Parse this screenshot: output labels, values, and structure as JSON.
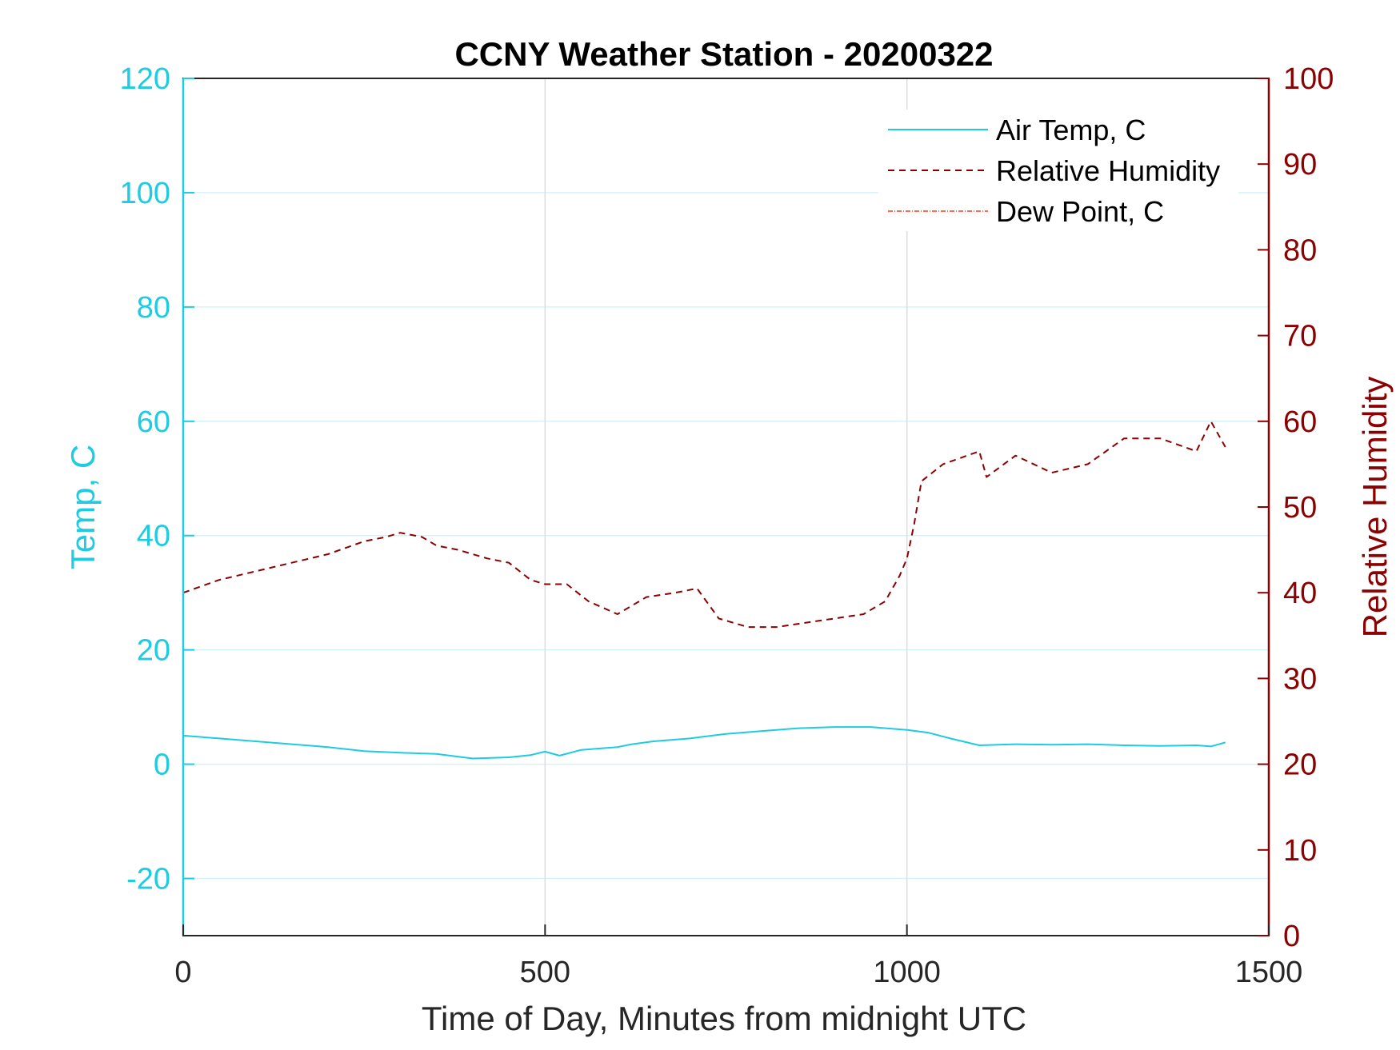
{
  "chart_data": {
    "type": "line",
    "title": "CCNY Weather Station - 20200322",
    "xlabel": "Time of Day, Minutes from midnight UTC",
    "ylabel_left": "Temp, C",
    "ylabel_right": "Relative Humidity",
    "xlim": [
      0,
      1500
    ],
    "ylim_left": [
      -30,
      120
    ],
    "ylim_right": [
      0,
      100
    ],
    "x_ticks": [
      "0",
      "500",
      "1000",
      "1500"
    ],
    "y_ticks_left": [
      "-20",
      "0",
      "20",
      "40",
      "60",
      "80",
      "100",
      "120"
    ],
    "y_ticks_right": [
      "0",
      "10",
      "20",
      "30",
      "40",
      "50",
      "60",
      "70",
      "80",
      "90",
      "100"
    ],
    "grid": true,
    "legend_position": "top-right",
    "colors": {
      "left_axis": "#1ecbe1",
      "right_axis": "#8b0000",
      "air_temp": "#1ecbe1",
      "relative_humidity": "#8b0000",
      "dew_point": "#ff3b1f",
      "grid_y": "#d4f3f8",
      "grid_x": "#d9dde2"
    },
    "series": [
      {
        "name": "Air Temp, C",
        "axis": "left",
        "style": "solid",
        "x": [
          0,
          50,
          100,
          150,
          200,
          250,
          300,
          350,
          400,
          450,
          480,
          500,
          520,
          550,
          600,
          620,
          650,
          700,
          750,
          800,
          850,
          900,
          950,
          1000,
          1030,
          1060,
          1100,
          1150,
          1200,
          1250,
          1300,
          1350,
          1400,
          1420,
          1440
        ],
        "y": [
          5,
          4.5,
          4,
          3.5,
          3,
          2.3,
          2,
          1.8,
          1,
          1.2,
          1.6,
          2.2,
          1.5,
          2.5,
          3,
          3.5,
          4,
          4.5,
          5.3,
          5.8,
          6.3,
          6.5,
          6.5,
          6,
          5.5,
          4.5,
          3.3,
          3.5,
          3.4,
          3.5,
          3.3,
          3.2,
          3.3,
          3.1,
          3.8
        ]
      },
      {
        "name": "Relative Humidity",
        "axis": "right",
        "style": "dashed",
        "x": [
          0,
          50,
          100,
          150,
          200,
          250,
          280,
          300,
          330,
          350,
          380,
          400,
          420,
          450,
          480,
          500,
          530,
          560,
          600,
          640,
          680,
          710,
          740,
          780,
          820,
          860,
          900,
          940,
          970,
          990,
          1000,
          1010,
          1020,
          1050,
          1100,
          1110,
          1150,
          1200,
          1250,
          1300,
          1350,
          1400,
          1420,
          1440
        ],
        "y": [
          40,
          41.5,
          42.5,
          43.5,
          44.5,
          46,
          46.5,
          47,
          46.5,
          45.5,
          45,
          44.5,
          44,
          43.5,
          41.5,
          41,
          41,
          39,
          37.5,
          39.5,
          40,
          40.5,
          37,
          36,
          36,
          36.5,
          37,
          37.5,
          39,
          42,
          44,
          48,
          53,
          55,
          56.5,
          53.5,
          56,
          54,
          55,
          58,
          58,
          56.5,
          60,
          57
        ]
      },
      {
        "name": "Dew Point, C",
        "axis": "left",
        "style": "dash-dot",
        "x": [],
        "y": []
      }
    ]
  }
}
